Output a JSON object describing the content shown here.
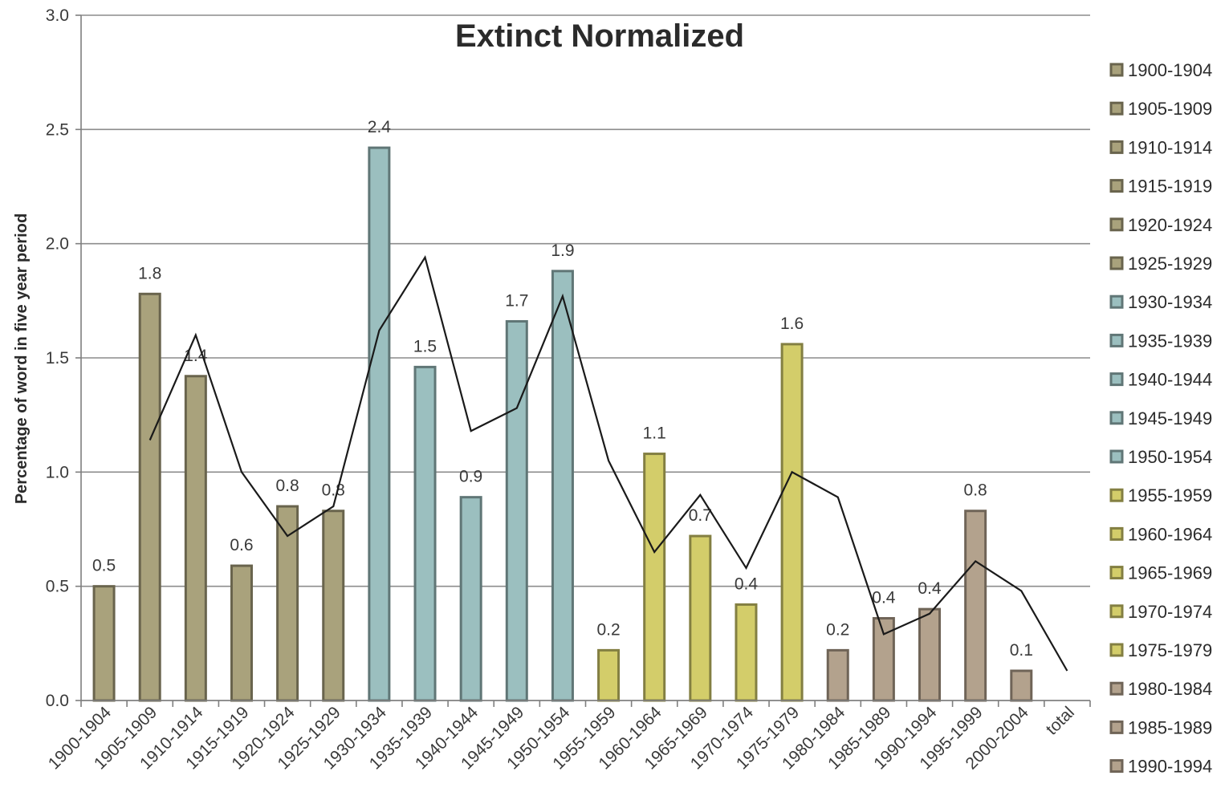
{
  "chart_data": {
    "type": "bar",
    "title": "Extinct Normalized",
    "xlabel": "",
    "ylabel": "Percentage of word in five year period",
    "ylim": [
      0,
      3.0
    ],
    "yticks": [
      "0.0",
      "0.5",
      "1.0",
      "1.5",
      "2.0",
      "2.5",
      "3.0"
    ],
    "grid": true,
    "legend_position": "right",
    "categories": [
      "1900-1904",
      "1905-1909",
      "1910-1914",
      "1915-1919",
      "1920-1924",
      "1925-1929",
      "1930-1934",
      "1935-1939",
      "1940-1944",
      "1945-1949",
      "1950-1954",
      "1955-1959",
      "1960-1964",
      "1965-1969",
      "1970-1974",
      "1975-1979",
      "1980-1984",
      "1985-1989",
      "1990-1994",
      "1995-1999",
      "2000-2004",
      "total"
    ],
    "values": [
      0.5,
      1.78,
      1.42,
      0.59,
      0.85,
      0.83,
      2.42,
      1.46,
      0.89,
      1.66,
      1.88,
      0.22,
      1.08,
      0.72,
      0.42,
      1.56,
      0.22,
      0.36,
      0.4,
      0.83,
      0.13,
      null
    ],
    "data_labels": [
      "0.5",
      "1.8",
      "1.4",
      "0.6",
      "0.8",
      "0.8",
      "2.4",
      "1.5",
      "0.9",
      "1.7",
      "1.9",
      "0.2",
      "1.1",
      "0.7",
      "0.4",
      "1.6",
      "0.2",
      "0.4",
      "0.4",
      "0.8",
      "0.1",
      ""
    ],
    "bar_colors": [
      "#a9a27c",
      "#a9a27c",
      "#a9a27c",
      "#a9a27c",
      "#a9a27c",
      "#a9a27c",
      "#9bbfbf",
      "#9bbfbf",
      "#9bbfbf",
      "#9bbfbf",
      "#9bbfbf",
      "#d3cd6a",
      "#d3cd6a",
      "#d3cd6a",
      "#d3cd6a",
      "#d3cd6a",
      "#b3a28d",
      "#b3a28d",
      "#b3a28d",
      "#b3a28d",
      "#b3a28d",
      ""
    ],
    "line_series": {
      "x_start_index": 1,
      "values": [
        1.14,
        1.6,
        1.0,
        0.72,
        0.85,
        1.62,
        1.94,
        1.18,
        1.28,
        1.77,
        1.05,
        0.65,
        0.9,
        0.58,
        1.0,
        0.89,
        0.29,
        0.38,
        0.61,
        0.48,
        0.13
      ],
      "color": "#1a1a1a"
    },
    "legend": [
      {
        "label": "1900-1904",
        "color": "#a9a27c"
      },
      {
        "label": "1905-1909",
        "color": "#a9a27c"
      },
      {
        "label": "1910-1914",
        "color": "#a9a27c"
      },
      {
        "label": "1915-1919",
        "color": "#a9a27c"
      },
      {
        "label": "1920-1924",
        "color": "#a9a27c"
      },
      {
        "label": "1925-1929",
        "color": "#a9a27c"
      },
      {
        "label": "1930-1934",
        "color": "#9bbfbf"
      },
      {
        "label": "1935-1939",
        "color": "#9bbfbf"
      },
      {
        "label": "1940-1944",
        "color": "#9bbfbf"
      },
      {
        "label": "1945-1949",
        "color": "#9bbfbf"
      },
      {
        "label": "1950-1954",
        "color": "#9bbfbf"
      },
      {
        "label": "1955-1959",
        "color": "#d3cd6a"
      },
      {
        "label": "1960-1964",
        "color": "#d3cd6a"
      },
      {
        "label": "1965-1969",
        "color": "#d3cd6a"
      },
      {
        "label": "1970-1974",
        "color": "#d3cd6a"
      },
      {
        "label": "1975-1979",
        "color": "#d3cd6a"
      },
      {
        "label": "1980-1984",
        "color": "#b3a28d"
      },
      {
        "label": "1985-1989",
        "color": "#b3a28d"
      },
      {
        "label": "1990-1994",
        "color": "#b3a28d"
      }
    ],
    "colors": {
      "axis": "#7f7f7f",
      "grid": "#8c8c8c",
      "text": "#2b2b2b"
    }
  }
}
